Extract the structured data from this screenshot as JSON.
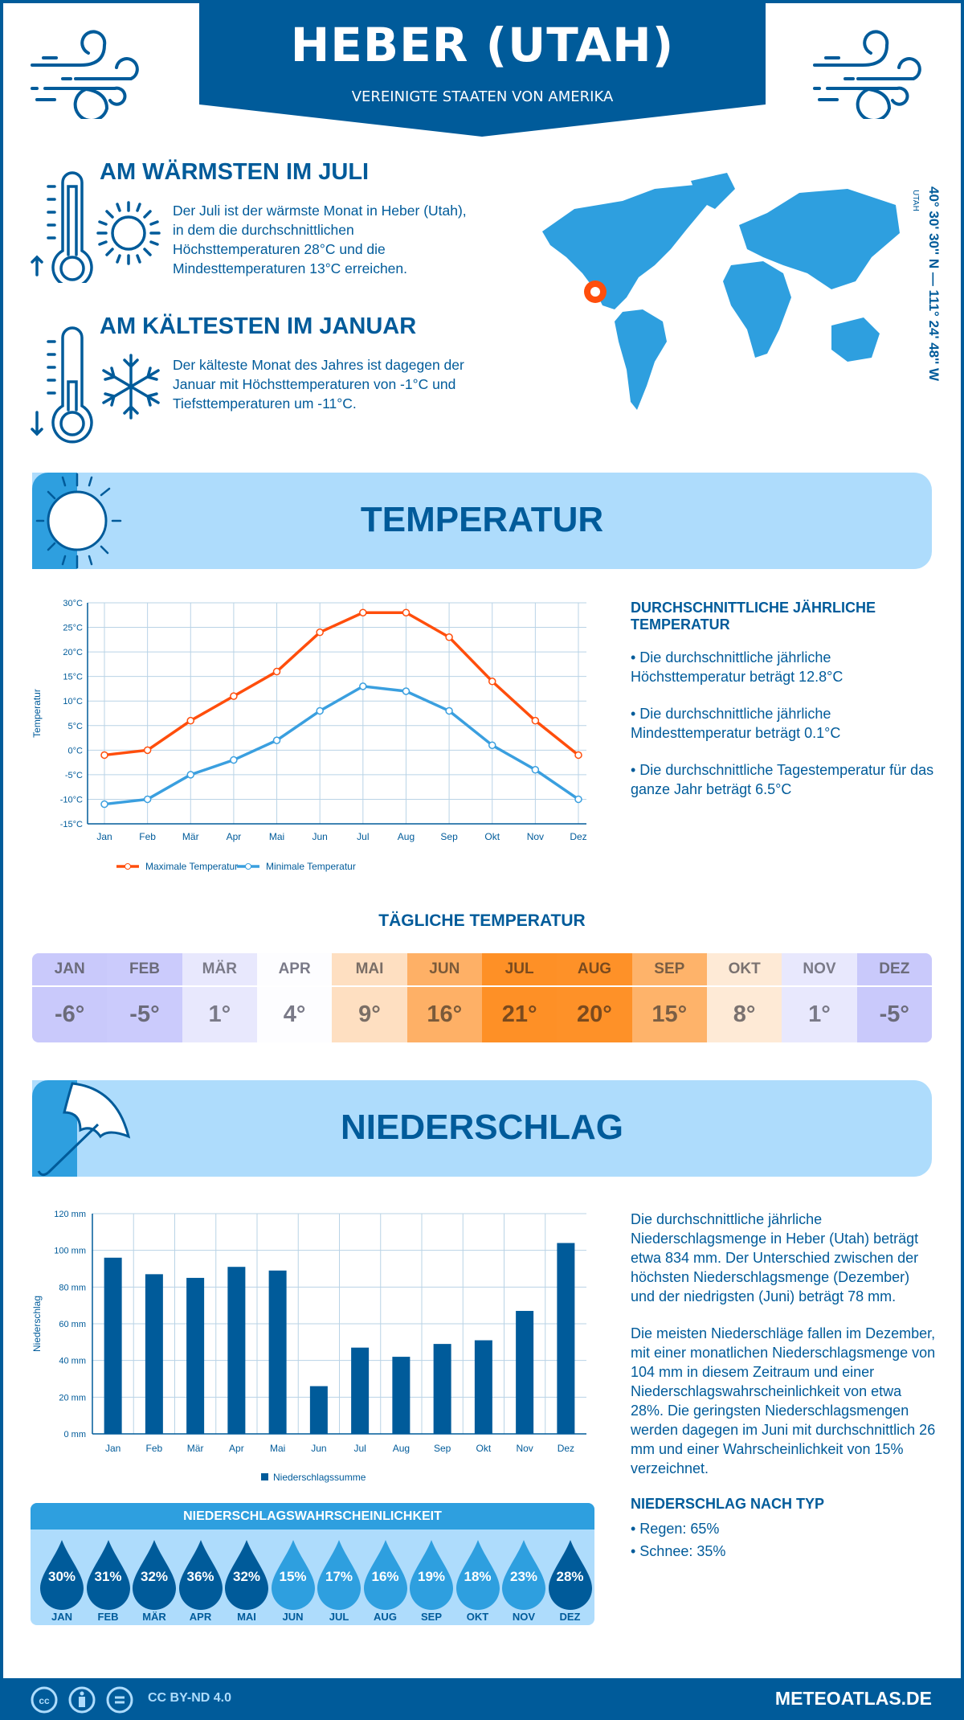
{
  "header": {
    "title": "HEBER (UTAH)",
    "subtitle": "VEREINIGTE STAATEN VON AMERIKA"
  },
  "warmest": {
    "title": "AM WÄRMSTEN IM JULI",
    "text": "Der Juli ist der wärmste Monat in Heber (Utah), in dem die durchschnittlichen Höchsttemperaturen 28°C und die Mindesttemperaturen 13°C erreichen."
  },
  "coldest": {
    "title": "AM KÄLTESTEN IM JANUAR",
    "text": "Der kälteste Monat des Jahres ist dagegen der Januar mit Höchsttemperaturen von -1°C und Tiefsttemperaturen um -11°C."
  },
  "map": {
    "coordinates": "40° 30' 30'' N — 111° 24' 48'' W",
    "region": "UTAH",
    "marker_color": "#ff4e0c"
  },
  "temperature": {
    "banner": "TEMPERATUR",
    "annual_heading": "DURCHSCHNITTLICHE JÄHRLICHE TEMPERATUR",
    "bullets": [
      "• Die durchschnittliche jährliche Höchsttemperatur beträgt 12.8°C",
      "• Die durchschnittliche jährliche Mindesttemperatur beträgt 0.1°C",
      "• Die durchschnittliche Tagestemperatur für das ganze Jahr beträgt 6.5°C"
    ]
  },
  "daily": {
    "title": "TÄGLICHE TEMPERATUR",
    "months": [
      "JAN",
      "FEB",
      "MÄR",
      "APR",
      "MAI",
      "JUN",
      "JUL",
      "AUG",
      "SEP",
      "OKT",
      "NOV",
      "DEZ"
    ],
    "values": [
      "-6°",
      "-5°",
      "1°",
      "4°",
      "9°",
      "16°",
      "21°",
      "20°",
      "15°",
      "8°",
      "1°",
      "-5°"
    ],
    "colors": [
      "#c9c9fb",
      "#cbcbfc",
      "#e8e8fd",
      "#fdfdff",
      "#fedfc1",
      "#feb066",
      "#fe9026",
      "#fe9128",
      "#feb36a",
      "#feead6",
      "#e8e8fd",
      "#c9c9fb"
    ],
    "text_colors": [
      "#6b6b7a",
      "#6b6b7a",
      "#7a7a88",
      "#7a7a88",
      "#7a6e66",
      "#7a5a3a",
      "#7a4a1e",
      "#7a4a1e",
      "#7a5e44",
      "#7a7270",
      "#7a7a88",
      "#6b6b7a"
    ]
  },
  "precipitation": {
    "banner": "NIEDERSCHLAG",
    "text1": "Die durchschnittliche jährliche Niederschlagsmenge in Heber (Utah) beträgt etwa 834 mm. Der Unterschied zwischen der höchsten Niederschlagsmenge (Dezember) und der niedrigsten (Juni) beträgt 78 mm.",
    "text2": "Die meisten Niederschläge fallen im Dezember, mit einer monatlichen Niederschlagsmenge von 104 mm in diesem Zeitraum und einer Niederschlagswahrscheinlichkeit von etwa 28%. Die geringsten Niederschlagsmengen werden dagegen im Juni mit durchschnittlich 26 mm und einer Wahrscheinlichkeit von 15% verzeichnet.",
    "type_heading": "NIEDERSCHLAG NACH TYP",
    "types": [
      "• Regen: 65%",
      "• Schnee: 35%"
    ]
  },
  "probability": {
    "title": "NIEDERSCHLAGSWAHRSCHEINLICHKEIT",
    "months": [
      "JAN",
      "FEB",
      "MÄR",
      "APR",
      "MAI",
      "JUN",
      "JUL",
      "AUG",
      "SEP",
      "OKT",
      "NOV",
      "DEZ"
    ],
    "values": [
      "30%",
      "31%",
      "32%",
      "36%",
      "32%",
      "15%",
      "17%",
      "16%",
      "19%",
      "18%",
      "23%",
      "28%"
    ],
    "dark_color": "#005b9a",
    "light_color": "#2e9fdf"
  },
  "footer": {
    "license": "CC BY-ND 4.0",
    "site": "METEOATLAS.DE"
  },
  "chart_data": [
    {
      "type": "line",
      "categories": [
        "Jan",
        "Feb",
        "Mär",
        "Apr",
        "Mai",
        "Jun",
        "Jul",
        "Aug",
        "Sep",
        "Okt",
        "Nov",
        "Dez"
      ],
      "ylabel": "Temperatur",
      "ylim": [
        -15,
        30
      ],
      "yticks": [
        "-15°C",
        "-10°C",
        "-5°C",
        "0°C",
        "5°C",
        "10°C",
        "15°C",
        "20°C",
        "25°C",
        "30°C"
      ],
      "grid": true,
      "legend": "bottom",
      "series": [
        {
          "name": "Maximale Temperatur",
          "color": "#ff4e0c",
          "values": [
            -1,
            0,
            6,
            11,
            16,
            24,
            28,
            28,
            23,
            14,
            6,
            -1
          ]
        },
        {
          "name": "Minimale Temperatur",
          "color": "#3a9fdf",
          "values": [
            -11,
            -10,
            -5,
            -2,
            2,
            8,
            13,
            12,
            8,
            1,
            -4,
            -10
          ]
        }
      ]
    },
    {
      "type": "bar",
      "categories": [
        "Jan",
        "Feb",
        "Mär",
        "Apr",
        "Mai",
        "Jun",
        "Jul",
        "Aug",
        "Sep",
        "Okt",
        "Nov",
        "Dez"
      ],
      "ylabel": "Niederschlag",
      "ylim": [
        0,
        120
      ],
      "yticks": [
        "0 mm",
        "20 mm",
        "40 mm",
        "60 mm",
        "80 mm",
        "100 mm",
        "120 mm"
      ],
      "grid": true,
      "legend": "bottom",
      "series": [
        {
          "name": "Niederschlagssumme",
          "color": "#005b9a",
          "values": [
            96,
            87,
            85,
            91,
            89,
            26,
            47,
            42,
            49,
            51,
            67,
            104
          ]
        }
      ]
    }
  ]
}
